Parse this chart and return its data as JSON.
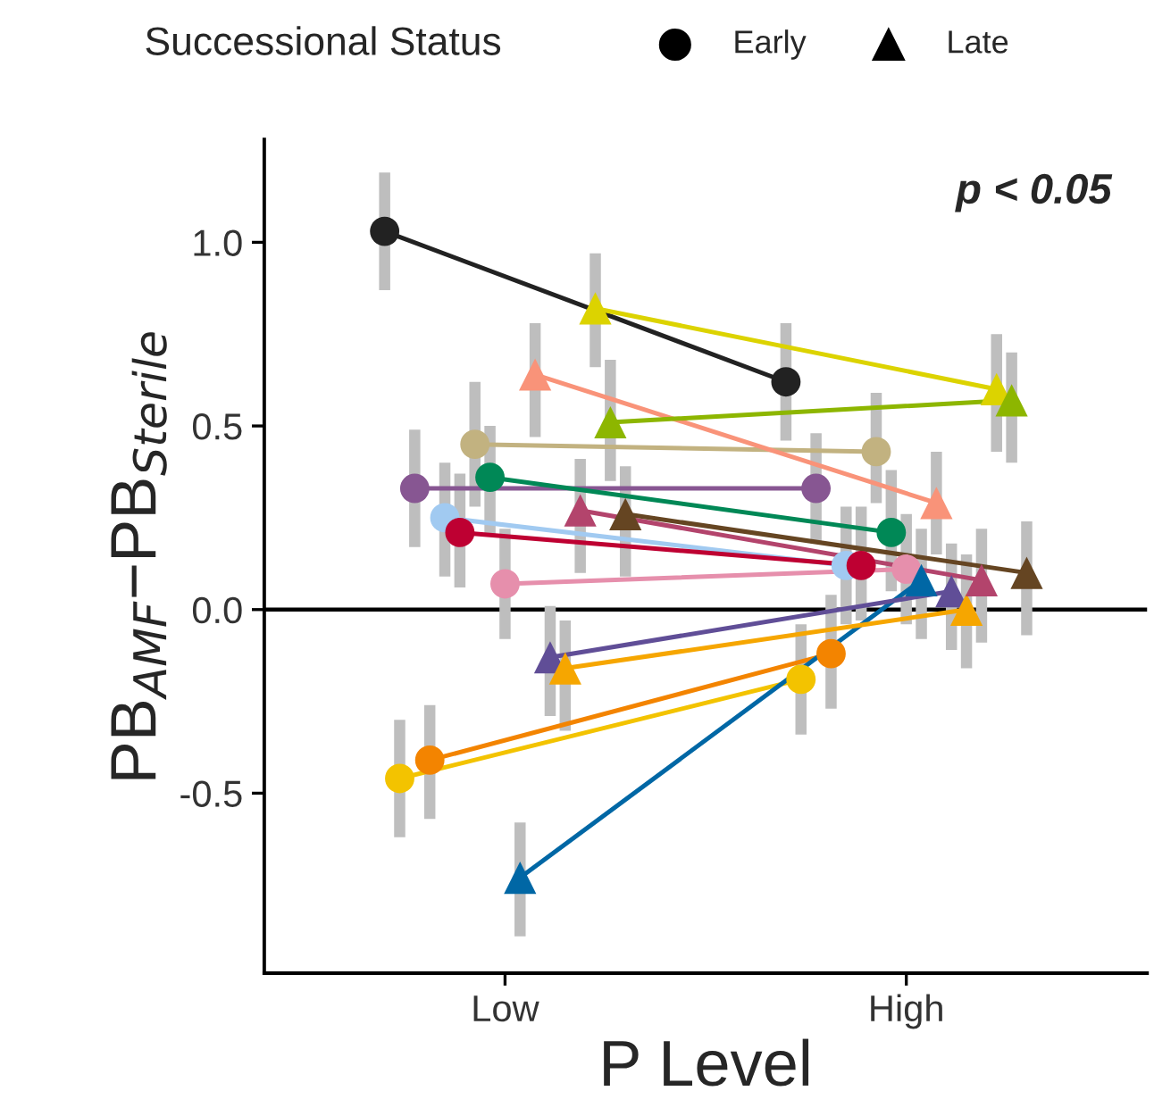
{
  "chart_data": {
    "type": "line",
    "legend_title": "Successional Status",
    "xlabel": "P Level",
    "ylabel": "PB$_{AMF}$−PB$_{Sterile}$",
    "annotations": [
      "p < 0.05",
      "Early",
      "Late"
    ],
    "categories": [
      "Low",
      "High"
    ],
    "ylim": [
      -0.99,
      1.28
    ],
    "yticks": [
      {
        "value": -0.5,
        "label": "-0.5"
      },
      {
        "value": 0,
        "label": "0.0"
      },
      {
        "value": 0.5,
        "label": "0.5"
      },
      {
        "value": 1,
        "label": "1.0"
      }
    ],
    "grid": false,
    "ref_lines": [
      {
        "axis": "y",
        "value": 0,
        "color": "#000000"
      }
    ],
    "series": [
      {
        "marker": "circle",
        "color": "#222222",
        "values": [
          1.03,
          0.62
        ],
        "errors": [
          [
            0.87,
            1.19
          ],
          [
            0.46,
            0.78
          ]
        ]
      },
      {
        "marker": "circle",
        "color": "#f3c300",
        "values": [
          -0.46,
          -0.19
        ],
        "errors": [
          [
            -0.62,
            -0.3
          ],
          [
            -0.34,
            -0.04
          ]
        ]
      },
      {
        "marker": "circle",
        "color": "#875692",
        "values": [
          0.33,
          0.33
        ],
        "errors": [
          [
            0.17,
            0.49
          ],
          [
            0.18,
            0.48
          ]
        ]
      },
      {
        "marker": "circle",
        "color": "#f38400",
        "values": [
          -0.41,
          -0.12
        ],
        "errors": [
          [
            -0.57,
            -0.26
          ],
          [
            -0.27,
            0.04
          ]
        ]
      },
      {
        "marker": "circle",
        "color": "#a1caf1",
        "values": [
          0.25,
          0.12
        ],
        "errors": [
          [
            0.09,
            0.4
          ],
          [
            -0.04,
            0.28
          ]
        ]
      },
      {
        "marker": "circle",
        "color": "#be0032",
        "values": [
          0.21,
          0.12
        ],
        "errors": [
          [
            0.06,
            0.37
          ],
          [
            -0.03,
            0.28
          ]
        ]
      },
      {
        "marker": "circle",
        "color": "#c2b280",
        "values": [
          0.45,
          0.43
        ],
        "errors": [
          [
            0.28,
            0.62
          ],
          [
            0.29,
            0.59
          ]
        ]
      },
      {
        "marker": "circle",
        "color": "#008856",
        "values": [
          0.36,
          0.21
        ],
        "errors": [
          [
            0.2,
            0.5
          ],
          [
            0.05,
            0.38
          ]
        ]
      },
      {
        "marker": "circle",
        "color": "#e68fac",
        "values": [
          0.07,
          0.11
        ],
        "errors": [
          [
            -0.08,
            0.22
          ],
          [
            -0.04,
            0.26
          ]
        ]
      },
      {
        "marker": "triangle",
        "color": "#0067a5",
        "values": [
          -0.73,
          0.08
        ],
        "errors": [
          [
            -0.89,
            -0.58
          ],
          [
            -0.08,
            0.22
          ]
        ]
      },
      {
        "marker": "triangle",
        "color": "#f99379",
        "values": [
          0.64,
          0.29
        ],
        "errors": [
          [
            0.47,
            0.78
          ],
          [
            0.15,
            0.43
          ]
        ]
      },
      {
        "marker": "triangle",
        "color": "#604e97",
        "values": [
          -0.13,
          0.05
        ],
        "errors": [
          [
            -0.29,
            0.01
          ],
          [
            -0.11,
            0.18
          ]
        ]
      },
      {
        "marker": "triangle",
        "color": "#f6a600",
        "values": [
          -0.16,
          0.0
        ],
        "errors": [
          [
            -0.33,
            -0.03
          ],
          [
            -0.16,
            0.15
          ]
        ]
      },
      {
        "marker": "triangle",
        "color": "#b3446c",
        "values": [
          0.27,
          0.08
        ],
        "errors": [
          [
            0.1,
            0.41
          ],
          [
            -0.09,
            0.22
          ]
        ]
      },
      {
        "marker": "triangle",
        "color": "#dcd300",
        "values": [
          0.82,
          0.6
        ],
        "errors": [
          [
            0.66,
            0.97
          ],
          [
            0.43,
            0.75
          ]
        ]
      },
      {
        "marker": "triangle",
        "color": "#8db600",
        "values": [
          0.51,
          0.57
        ],
        "errors": [
          [
            0.35,
            0.68
          ],
          [
            0.4,
            0.7
          ]
        ]
      },
      {
        "marker": "triangle",
        "color": "#654522",
        "values": [
          0.26,
          0.1
        ],
        "errors": [
          [
            0.09,
            0.39
          ],
          [
            -0.07,
            0.24
          ]
        ]
      }
    ]
  }
}
